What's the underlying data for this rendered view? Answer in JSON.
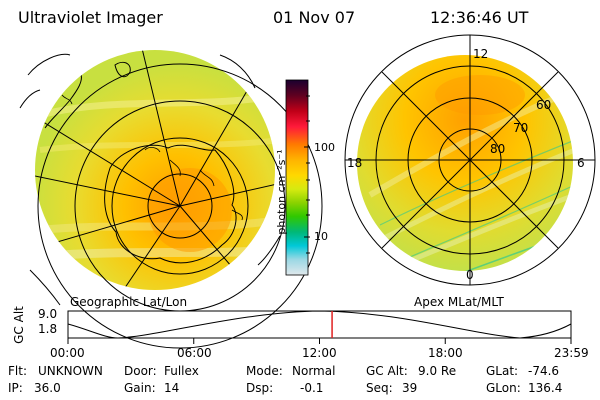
{
  "header": {
    "title": "Ultraviolet Imager",
    "date": "01 Nov 07",
    "time": "12:36:46 UT"
  },
  "left_map": {
    "label": "Geographic Lat/Lon"
  },
  "right_map": {
    "label": "Apex MLat/MLT",
    "mlt_labels": {
      "top": "12",
      "left": "18",
      "right": "6",
      "bottom": "0"
    },
    "lat_labels": [
      "60",
      "70",
      "80"
    ]
  },
  "colorbar": {
    "unit_label": "photon cm⁻²s⁻¹",
    "ticks": [
      "100",
      "10"
    ],
    "colors": [
      "#1a0030",
      "#600020",
      "#c00018",
      "#ff1a3a",
      "#ff7a00",
      "#ffb400",
      "#ffd800",
      "#d6ea10",
      "#8ad200",
      "#30c800",
      "#00b878",
      "#00c8d8",
      "#9ad8e4",
      "#e0e8ec"
    ]
  },
  "timeline": {
    "axis_title": "GC Alt",
    "y_ticks": [
      "9.0",
      "1.8"
    ],
    "x_ticks": [
      "00:00",
      "06:00",
      "12:00",
      "18:00",
      "23:59"
    ],
    "current_hour": 12.6,
    "marker_color": "#e02020"
  },
  "info": {
    "row1": [
      {
        "key": "Flt:",
        "value": "UNKNOWN"
      },
      {
        "key": "Door:",
        "value": "Fullex"
      },
      {
        "key": "Mode:",
        "value": "Normal"
      },
      {
        "key": "GC Alt:",
        "value": "9.0 Re"
      },
      {
        "key": "GLat:",
        "value": "-74.6"
      }
    ],
    "row2": [
      {
        "key": "IP:",
        "value": "36.0"
      },
      {
        "key": "Gain:",
        "value": "14"
      },
      {
        "key": "Dsp:",
        "value": "-0.1"
      },
      {
        "key": "Seq:",
        "value": "39"
      },
      {
        "key": "GLon:",
        "value": "136.4"
      }
    ]
  }
}
